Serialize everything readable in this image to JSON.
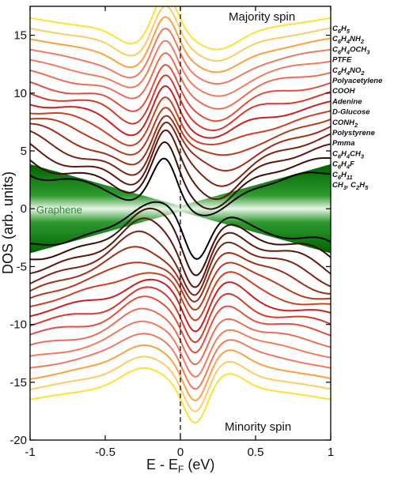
{
  "chart_data": {
    "type": "line",
    "xlabel": "E - E_F (eV)",
    "ylabel": "DOS (arb. units)",
    "xlim": [
      -1,
      1
    ],
    "ylim": [
      -20,
      17.5
    ],
    "x_ticks": [
      "-1",
      "-0.5",
      "0",
      "0.5",
      "1"
    ],
    "y_ticks": [
      "-20",
      "-15",
      "-10",
      "-5",
      "0",
      "5",
      "10",
      "15"
    ],
    "top_annotation": "Majority spin",
    "bottom_annotation": "Minority spin",
    "fill_label": "Graphene",
    "fermi_level_x": 0,
    "legend_position": "right",
    "series": [
      {
        "name": "C6H5",
        "color": "#ffe033",
        "offset": 15.3
      },
      {
        "name": "C6H4NH2",
        "color": "#ffca66",
        "offset": 14.3
      },
      {
        "name": "C6H4OCH3",
        "color": "#ffa040",
        "offset": 13.3
      },
      {
        "name": "PTFE",
        "color": "#f07a60",
        "offset": 12.3
      },
      {
        "name": "C6H4NO2",
        "color": "#f47b5a",
        "offset": 11.3
      },
      {
        "name": "Polyacetylene",
        "color": "#ee6c53",
        "offset": 10.3
      },
      {
        "name": "COOH",
        "color": "#e2503d",
        "offset": 9.3
      },
      {
        "name": "Adenine",
        "color": "#d63b2a",
        "offset": 8.4
      },
      {
        "name": "D-Glucose",
        "color": "#cc2020",
        "offset": 7.5
      },
      {
        "name": "CONH2",
        "color": "#d04020",
        "offset": 6.6
      },
      {
        "name": "Polystyrene",
        "color": "#b83c1c",
        "offset": 5.7
      },
      {
        "name": "Pmma",
        "color": "#9c3018",
        "offset": 4.8
      },
      {
        "name": "C6H4CH3",
        "color": "#7f2412",
        "offset": 3.9
      },
      {
        "name": "C6H4F",
        "color": "#60180c",
        "offset": 3.0
      },
      {
        "name": "C6H11",
        "color": "#3c0e06",
        "offset": 2.1
      },
      {
        "name": "CH3, C2H5",
        "color": "#000000",
        "offset": 1.2
      }
    ]
  },
  "legend_display": [
    {
      "base": "C",
      "sub1": "6",
      "mid": "H",
      "sub2": "5",
      "tail": "",
      "sub3": "",
      "tail2": "",
      "sub4": ""
    },
    {
      "base": "C",
      "sub1": "6",
      "mid": "H",
      "sub2": "4",
      "tail": "NH",
      "sub3": "2",
      "tail2": "",
      "sub4": ""
    },
    {
      "base": "C",
      "sub1": "6",
      "mid": "H",
      "sub2": "4",
      "tail": "OCH",
      "sub3": "3",
      "tail2": "",
      "sub4": ""
    },
    {
      "base": "PTFE",
      "sub1": "",
      "mid": "",
      "sub2": "",
      "tail": "",
      "sub3": "",
      "tail2": "",
      "sub4": ""
    },
    {
      "base": "C",
      "sub1": "6",
      "mid": "H",
      "sub2": "4",
      "tail": "NO",
      "sub3": "2",
      "tail2": "",
      "sub4": ""
    },
    {
      "base": "Polyacetylene",
      "sub1": "",
      "mid": "",
      "sub2": "",
      "tail": "",
      "sub3": "",
      "tail2": "",
      "sub4": ""
    },
    {
      "base": "COOH",
      "sub1": "",
      "mid": "",
      "sub2": "",
      "tail": "",
      "sub3": "",
      "tail2": "",
      "sub4": ""
    },
    {
      "base": "Adenine",
      "sub1": "",
      "mid": "",
      "sub2": "",
      "tail": "",
      "sub3": "",
      "tail2": "",
      "sub4": ""
    },
    {
      "base": "D-Glucose",
      "sub1": "",
      "mid": "",
      "sub2": "",
      "tail": "",
      "sub3": "",
      "tail2": "",
      "sub4": ""
    },
    {
      "base": "CONH",
      "sub1": "2",
      "mid": "",
      "sub2": "",
      "tail": "",
      "sub3": "",
      "tail2": "",
      "sub4": ""
    },
    {
      "base": "Polystyrene",
      "sub1": "",
      "mid": "",
      "sub2": "",
      "tail": "",
      "sub3": "",
      "tail2": "",
      "sub4": ""
    },
    {
      "base": "Pmma",
      "sub1": "",
      "mid": "",
      "sub2": "",
      "tail": "",
      "sub3": "",
      "tail2": "",
      "sub4": ""
    },
    {
      "base": "C",
      "sub1": "6",
      "mid": "H",
      "sub2": "4",
      "tail": "CH",
      "sub3": "3",
      "tail2": "",
      "sub4": ""
    },
    {
      "base": "C",
      "sub1": "6",
      "mid": "H",
      "sub2": "4",
      "tail": "F",
      "sub3": "",
      "tail2": "",
      "sub4": ""
    },
    {
      "base": "C",
      "sub1": "6",
      "mid": "H",
      "sub2": "11",
      "tail": "",
      "sub3": "",
      "tail2": "",
      "sub4": ""
    },
    {
      "base": "CH",
      "sub1": "3",
      "mid": ", C",
      "sub2": "2",
      "tail": "H",
      "sub3": "5",
      "tail2": "",
      "sub4": ""
    }
  ]
}
